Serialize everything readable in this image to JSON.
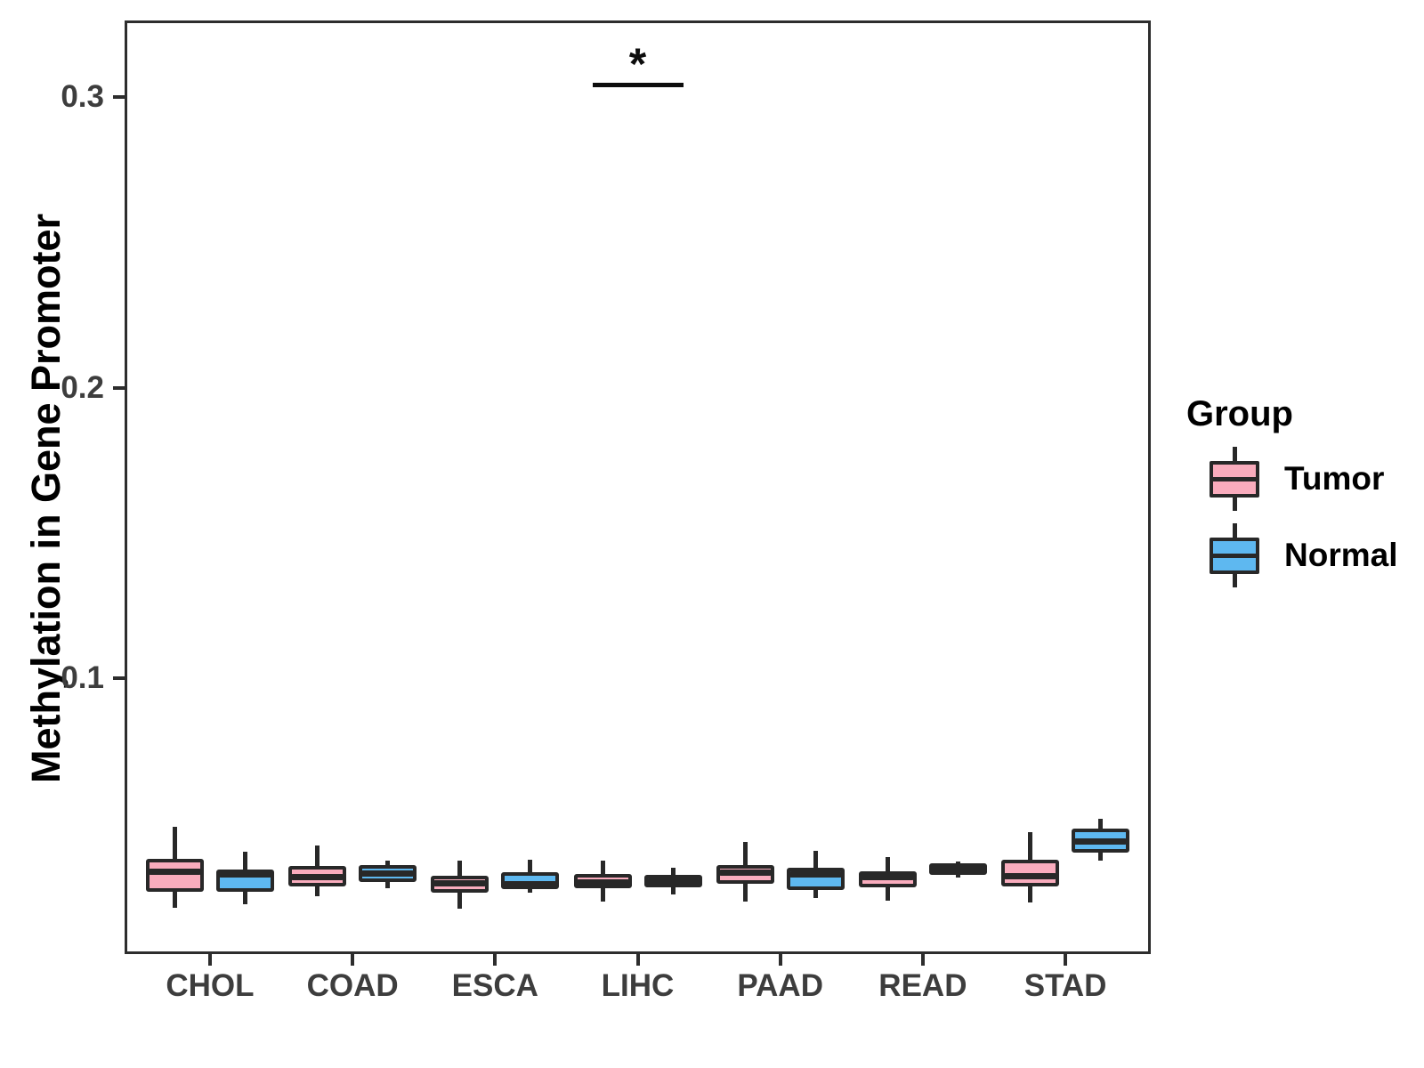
{
  "chart_data": {
    "type": "boxplot",
    "title": "",
    "xlabel": "",
    "ylabel": "Methylation in Gene Promoter",
    "categories": [
      "CHOL",
      "COAD",
      "ESCA",
      "LIHC",
      "PAAD",
      "READ",
      "STAD"
    ],
    "ylim": [
      0.006,
      0.3255
    ],
    "yticks": [
      {
        "value": 0.1,
        "label": "0.1"
      },
      {
        "value": 0.2,
        "label": "0.2"
      },
      {
        "value": 0.3,
        "label": "0.3"
      }
    ],
    "grid": false,
    "outline_color": "#282828",
    "background": "#ffffff",
    "legend": {
      "title": "Group",
      "position": "right",
      "entries": [
        {
          "label": "Tumor",
          "color": "#F9ACBD"
        },
        {
          "label": "Normal",
          "color": "#5EB8F0"
        }
      ]
    },
    "series": [
      {
        "name": "Tumor",
        "color": "#F9ACBD",
        "boxes": [
          {
            "category": "CHOL",
            "whisker_low": 0.021,
            "q1": 0.0265,
            "median": 0.0335,
            "q3": 0.0378,
            "whisker_high": 0.0488
          },
          {
            "category": "COAD",
            "whisker_low": 0.0249,
            "q1": 0.0284,
            "median": 0.0315,
            "q3": 0.0355,
            "whisker_high": 0.0426
          },
          {
            "category": "ESCA",
            "whisker_low": 0.0208,
            "q1": 0.0261,
            "median": 0.0293,
            "q3": 0.0321,
            "whisker_high": 0.0373
          },
          {
            "category": "LIHC",
            "whisker_low": 0.0233,
            "q1": 0.0278,
            "median": 0.0296,
            "q3": 0.0327,
            "whisker_high": 0.0372
          },
          {
            "category": "PAAD",
            "whisker_low": 0.023,
            "q1": 0.0294,
            "median": 0.0332,
            "q3": 0.0357,
            "whisker_high": 0.0438
          },
          {
            "category": "READ",
            "whisker_low": 0.0236,
            "q1": 0.028,
            "median": 0.0317,
            "q3": 0.0336,
            "whisker_high": 0.0384
          },
          {
            "category": "STAD",
            "whisker_low": 0.0228,
            "q1": 0.0284,
            "median": 0.0319,
            "q3": 0.0376,
            "whisker_high": 0.0469
          }
        ]
      },
      {
        "name": "Normal",
        "color": "#5EB8F0",
        "boxes": [
          {
            "category": "CHOL",
            "whisker_low": 0.0223,
            "q1": 0.0266,
            "median": 0.0325,
            "q3": 0.0343,
            "whisker_high": 0.0404
          },
          {
            "category": "COAD",
            "whisker_low": 0.0278,
            "q1": 0.0299,
            "median": 0.0328,
            "q3": 0.0357,
            "whisker_high": 0.0372
          },
          {
            "category": "ESCA",
            "whisker_low": 0.0261,
            "q1": 0.0273,
            "median": 0.0291,
            "q3": 0.0334,
            "whisker_high": 0.0375
          },
          {
            "category": "LIHC",
            "whisker_low": 0.0257,
            "q1": 0.0281,
            "median": 0.03,
            "q3": 0.0324,
            "whisker_high": 0.0348
          },
          {
            "category": "PAAD",
            "whisker_low": 0.0243,
            "q1": 0.0271,
            "median": 0.0325,
            "q3": 0.0347,
            "whisker_high": 0.0407
          },
          {
            "category": "READ",
            "whisker_low": 0.0313,
            "q1": 0.0324,
            "median": 0.0344,
            "q3": 0.0364,
            "whisker_high": 0.0369
          },
          {
            "category": "STAD",
            "whisker_low": 0.0371,
            "q1": 0.0401,
            "median": 0.0437,
            "q3": 0.0482,
            "whisker_high": 0.0517
          }
        ]
      }
    ],
    "annotation": {
      "label": "*",
      "category": "LIHC",
      "y": 0.3045
    }
  }
}
